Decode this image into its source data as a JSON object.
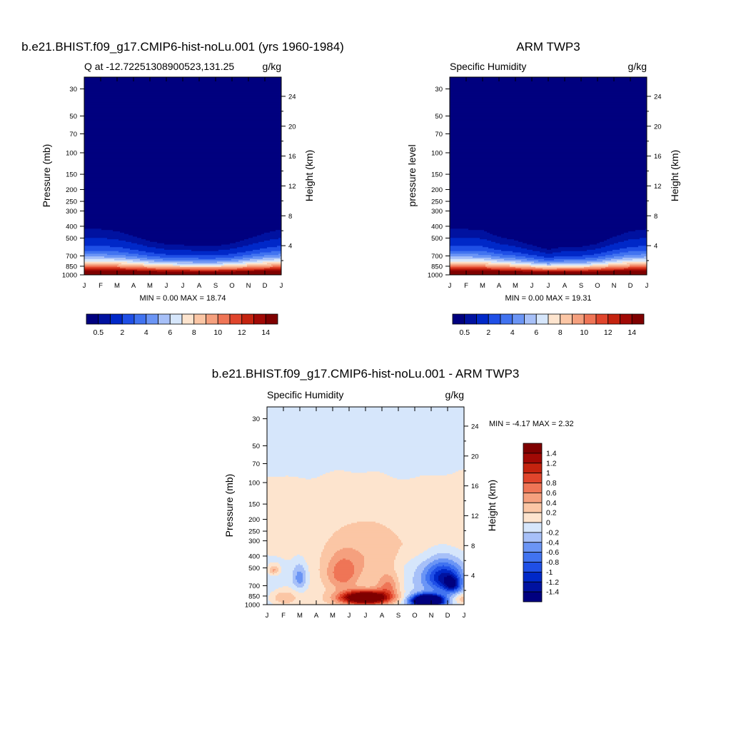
{
  "months": [
    "J",
    "F",
    "M",
    "A",
    "M",
    "J",
    "J",
    "A",
    "S",
    "O",
    "N",
    "D",
    "J"
  ],
  "pressure_ticks": [
    30,
    50,
    70,
    100,
    150,
    200,
    250,
    300,
    400,
    500,
    700,
    850,
    1000
  ],
  "height_ticks": [
    4,
    8,
    12,
    16,
    20,
    24
  ],
  "q_levels": [
    0.5,
    1,
    2,
    3,
    4,
    5,
    6,
    7,
    8,
    9,
    10,
    11,
    12,
    13,
    14
  ],
  "q_colors": [
    "#00007f",
    "#0012a0",
    "#0028c8",
    "#1f4fe6",
    "#4173f0",
    "#6b95f5",
    "#a7c0f8",
    "#d6e6fb",
    "#fde4ce",
    "#fbc6a5",
    "#f5a07e",
    "#ef7556",
    "#e0452c",
    "#c4230f",
    "#a10905",
    "#7f0000"
  ],
  "q_labels": [
    "0.5",
    "2",
    "4",
    "6",
    "8",
    "10",
    "12",
    "14"
  ],
  "d_levels": [
    -1.4,
    -1.2,
    -1,
    -0.8,
    -0.6,
    -0.4,
    -0.2,
    0,
    0.2,
    0.4,
    0.6,
    0.8,
    1,
    1.2,
    1.4
  ],
  "d_colors": [
    "#00007f",
    "#0012a0",
    "#0028c8",
    "#1f4fe6",
    "#4173f0",
    "#6b95f5",
    "#a7c0f8",
    "#d6e6fb",
    "#fde4ce",
    "#fbc6a5",
    "#f5a07e",
    "#ef7556",
    "#e0452c",
    "#c4230f",
    "#a10905",
    "#7f0000"
  ],
  "d_labels": [
    "1.4",
    "1.2",
    "1",
    "0.8",
    "0.6",
    "0.4",
    "0.2",
    "0",
    "-0.2",
    "-0.4",
    "-0.6",
    "-0.8",
    "-1",
    "-1.2",
    "-1.4"
  ],
  "chart_data": [
    {
      "type": "heatmap",
      "title": "b.e21.BHIST.f09_g17.CMIP6-hist-noLu.001 (yrs 1960-1984)",
      "subtitle_left": "Q at -12.72251308900523,131.25",
      "subtitle_right": "g/kg",
      "ylabel": "Pressure (mb)",
      "ylabel_right": "Height (km)",
      "ylim": [
        1000,
        24
      ],
      "min_max_text": "MIN =   0.00 MAX =  18.74",
      "min": 0.0,
      "max": 18.74,
      "x": [
        "J",
        "F",
        "M",
        "A",
        "M",
        "J",
        "J",
        "A",
        "S",
        "O",
        "N",
        "D",
        "J"
      ],
      "dry_top_pressure": [
        300,
        300,
        320,
        370,
        430,
        470,
        480,
        490,
        490,
        460,
        400,
        340,
        300
      ]
    },
    {
      "type": "heatmap",
      "title": "ARM TWP3",
      "subtitle_left": "Specific Humidity",
      "subtitle_right": "g/kg",
      "ylabel": "pressure level",
      "ylabel_right": "Height (km)",
      "ylim": [
        1000,
        24
      ],
      "min_max_text": "MIN =   0.00 MAX =  19.31",
      "min": 0.0,
      "max": 19.31,
      "x": [
        "J",
        "F",
        "M",
        "A",
        "M",
        "J",
        "J",
        "A",
        "S",
        "O",
        "N",
        "D",
        "J"
      ],
      "dry_top_pressure": [
        300,
        300,
        310,
        380,
        420,
        480,
        540,
        500,
        500,
        460,
        380,
        320,
        300
      ]
    },
    {
      "type": "heatmap",
      "title": "b.e21.BHIST.f09_g17.CMIP6-hist-noLu.001 - ARM TWP3",
      "subtitle_left": "Specific Humidity",
      "subtitle_right": "g/kg",
      "ylabel": "Pressure (mb)",
      "ylabel_right": "Height (km)",
      "ylim": [
        1000,
        24
      ],
      "min_max_text": "MIN =  -4.17 MAX =   2.32",
      "min": -4.17,
      "max": 2.32,
      "x": [
        "J",
        "F",
        "M",
        "A",
        "M",
        "J",
        "J",
        "A",
        "S",
        "O",
        "N",
        "D",
        "J"
      ]
    }
  ]
}
